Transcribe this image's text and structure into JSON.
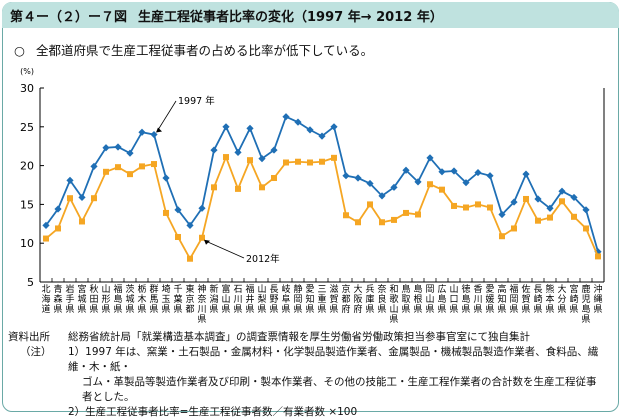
{
  "header": {
    "figure_number": "第４ー（２）ー７図",
    "title": "生産工程従事者比率の変化（1997 年→ 2012 年）"
  },
  "summary": {
    "mark": "○",
    "text": "全都道府県で生産工程従事者の占める比率が低下している。"
  },
  "colors": {
    "series_1997": "#1f6fb5",
    "series_2012": "#f5a623",
    "header_bg": "#bfe2df",
    "frame": "#6aa9a6"
  },
  "chart_data": {
    "type": "line",
    "yunit": "(%)",
    "ylim": [
      5,
      30
    ],
    "yticks": [
      5,
      10,
      15,
      20,
      25,
      30
    ],
    "categories": [
      "北海道",
      "青森県",
      "岩手県",
      "宮城県",
      "秋田県",
      "山形県",
      "福島県",
      "茨城県",
      "栃木県",
      "群馬県",
      "埼玉県",
      "千葉県",
      "東京都",
      "神奈川県",
      "新潟県",
      "富山県",
      "石川県",
      "福井県",
      "山梨県",
      "長野県",
      "岐阜県",
      "静岡県",
      "愛知県",
      "三重県",
      "滋賀県",
      "京都府",
      "大阪府",
      "兵庫県",
      "奈良県",
      "和歌山県",
      "鳥取県",
      "島根県",
      "岡山県",
      "広島県",
      "山口県",
      "徳島県",
      "香川県",
      "愛媛県",
      "高知県",
      "福岡県",
      "佐賀県",
      "長崎県",
      "熊本県",
      "大分県",
      "宮崎県",
      "鹿児島県",
      "沖縄県"
    ],
    "series": [
      {
        "name": "1997年",
        "values": [
          12.3,
          14.4,
          18.1,
          15.9,
          19.9,
          22.3,
          22.4,
          21.6,
          24.3,
          24.0,
          18.4,
          14.3,
          12.3,
          14.5,
          22.0,
          25.0,
          21.7,
          24.8,
          20.9,
          22.0,
          26.3,
          25.6,
          24.6,
          23.8,
          25.0,
          18.7,
          18.4,
          17.7,
          16.1,
          17.2,
          19.4,
          17.9,
          21.0,
          19.2,
          19.3,
          17.8,
          19.1,
          18.7,
          13.7,
          15.3,
          18.9,
          15.7,
          14.5,
          16.7,
          15.9,
          14.3,
          8.9
        ]
      },
      {
        "name": "2012年",
        "values": [
          10.6,
          11.9,
          15.8,
          12.8,
          15.8,
          19.2,
          19.8,
          18.9,
          19.9,
          20.2,
          13.9,
          10.8,
          8.0,
          10.7,
          17.2,
          21.1,
          17.0,
          20.7,
          17.2,
          18.4,
          20.4,
          20.5,
          20.4,
          20.5,
          21.0,
          13.6,
          12.7,
          15.0,
          12.7,
          13.0,
          13.9,
          13.7,
          17.6,
          16.9,
          14.8,
          14.6,
          15.0,
          14.6,
          10.9,
          11.9,
          15.7,
          12.9,
          13.3,
          15.4,
          13.4,
          11.9,
          8.3
        ]
      }
    ],
    "annotations": [
      {
        "text": "1997 年",
        "series": "1997年"
      },
      {
        "text": "2012年",
        "series": "2012年"
      }
    ],
    "grid": false,
    "legend": "none"
  },
  "notes": {
    "source_label": "資料出所",
    "source_text": "総務省統計局「就業構造基本調査」の調査票情報を厚生労働省労働政策担当参事官室にて独自集計",
    "notes_label": "（注）",
    "note1_line1": "1）1997 年は、窯業・土石製品・金属材料・化学製品製造作業者、金属製品・機械製品製造作業者、食料品、繊維・木・紙・",
    "note1_line2": "ゴム・革製品等製造作業者及び印刷・製本作業者、その他の技能工・生産工程作業者の合計数を生産工程従事",
    "note1_line3": "者とした。",
    "note2": "2）生産工程従事者比率=生産工程従事者数／有業者数 ×100"
  }
}
